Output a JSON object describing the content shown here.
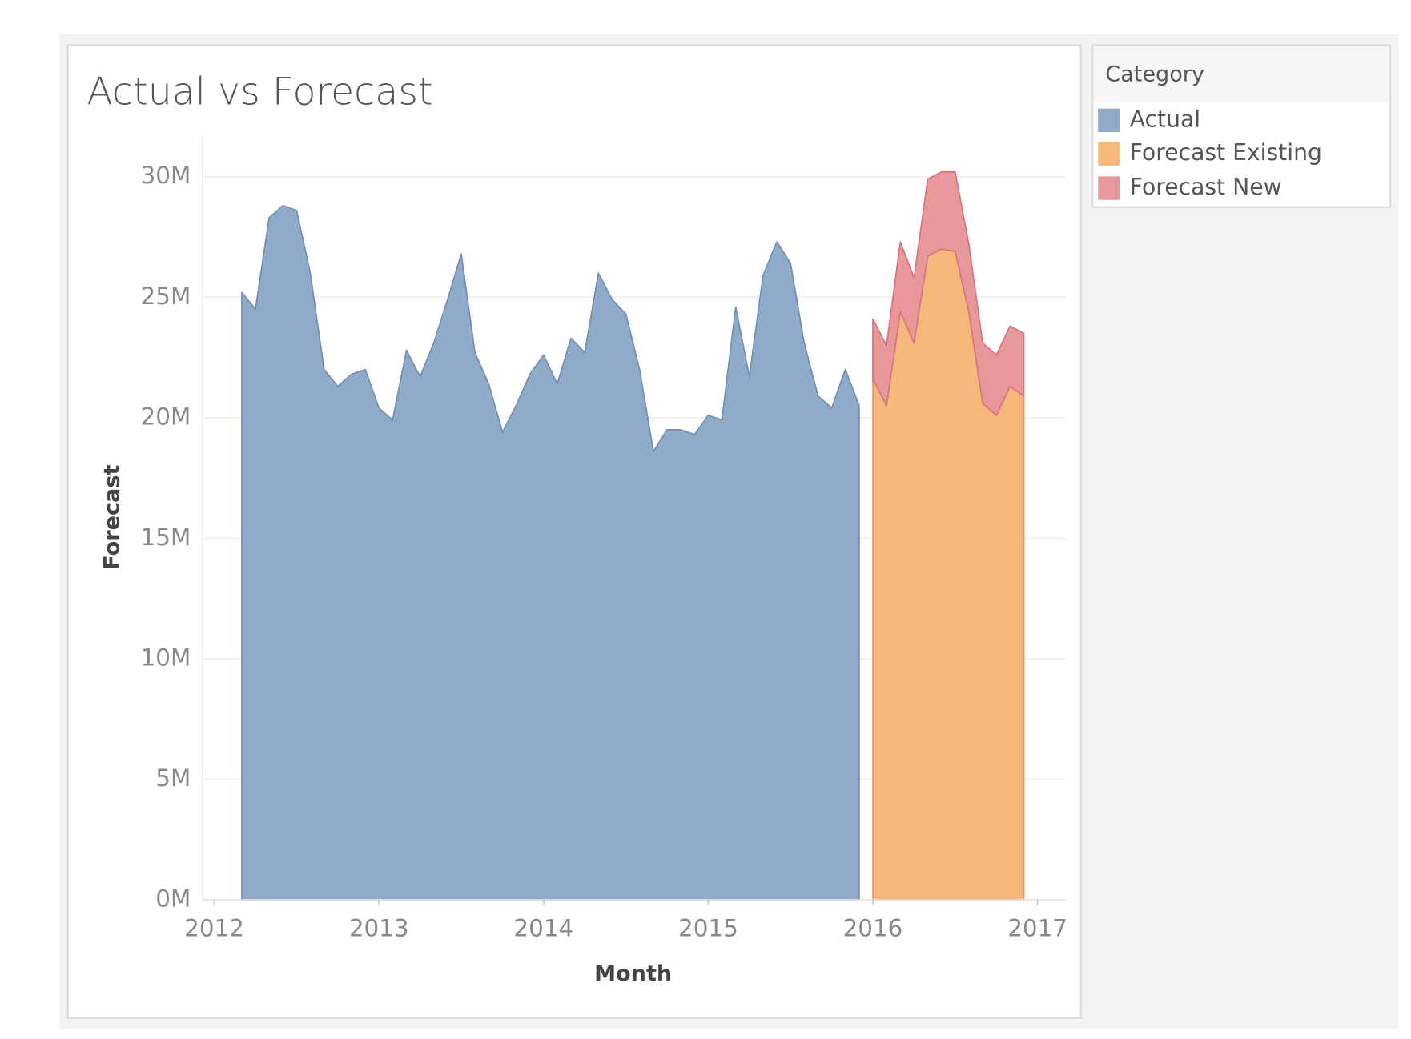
{
  "chart_data": {
    "type": "area",
    "title": "Actual vs Forecast",
    "x_label": "Month",
    "y_label": "Forecast",
    "legend_title": "Category",
    "legend": "right",
    "grid": true,
    "stacked": true,
    "xlim": [
      2011.929,
      2017.17
    ],
    "xticks": [
      2012,
      2013,
      2014,
      2015,
      2016,
      2017
    ],
    "ylim": [
      0,
      31700000
    ],
    "yticks": [
      {
        "value": 0,
        "label": "0M"
      },
      {
        "value": 5000000,
        "label": "5M"
      },
      {
        "value": 10000000,
        "label": "10M"
      },
      {
        "value": 15000000,
        "label": "15M"
      },
      {
        "value": 20000000,
        "label": "20M"
      },
      {
        "value": 25000000,
        "label": "25M"
      },
      {
        "value": 30000000,
        "label": "30M"
      }
    ],
    "x": [
      2012.167,
      2012.25,
      2012.333,
      2012.417,
      2012.5,
      2012.583,
      2012.667,
      2012.75,
      2012.833,
      2012.917,
      2013,
      2013.083,
      2013.167,
      2013.25,
      2013.333,
      2013.417,
      2013.5,
      2013.583,
      2013.667,
      2013.75,
      2013.833,
      2013.917,
      2014,
      2014.083,
      2014.167,
      2014.25,
      2014.333,
      2014.417,
      2014.5,
      2014.583,
      2014.667,
      2014.75,
      2014.833,
      2014.917,
      2015,
      2015.083,
      2015.167,
      2015.25,
      2015.333,
      2015.417,
      2015.5,
      2015.583,
      2015.667,
      2015.75,
      2015.833,
      2015.917,
      2016,
      2016.083,
      2016.167,
      2016.25,
      2016.333,
      2016.417,
      2016.5,
      2016.583,
      2016.667,
      2016.75,
      2016.833,
      2016.917
    ],
    "series": [
      {
        "name": "Actual",
        "color": "#8fabc9",
        "stroke": "#6f8fb8",
        "values": [
          25200000,
          24500000,
          28300000,
          28800000,
          28600000,
          26000000,
          22000000,
          21300000,
          21800000,
          22000000,
          20400000,
          19900000,
          22800000,
          21700000,
          23100000,
          24900000,
          26800000,
          22700000,
          21400000,
          19400000,
          20500000,
          21800000,
          22600000,
          21400000,
          23300000,
          22700000,
          26000000,
          24900000,
          24300000,
          22000000,
          18600000,
          19500000,
          19500000,
          19300000,
          20100000,
          19900000,
          24600000,
          21700000,
          25900000,
          27300000,
          26400000,
          23100000,
          20900000,
          20400000,
          22000000,
          20500000,
          null,
          null,
          null,
          null,
          null,
          null,
          null,
          null,
          null,
          null,
          null,
          null
        ]
      },
      {
        "name": "Forecast Existing",
        "color": "#f5b87a",
        "stroke": "#ee8f77",
        "values": [
          null,
          null,
          null,
          null,
          null,
          null,
          null,
          null,
          null,
          null,
          null,
          null,
          null,
          null,
          null,
          null,
          null,
          null,
          null,
          null,
          null,
          null,
          null,
          null,
          null,
          null,
          null,
          null,
          null,
          null,
          null,
          null,
          null,
          null,
          null,
          null,
          null,
          null,
          null,
          null,
          null,
          null,
          null,
          null,
          null,
          null,
          21600000,
          20500000,
          24400000,
          23100000,
          26700000,
          27000000,
          26900000,
          24400000,
          20600000,
          20100000,
          21300000,
          20900000
        ]
      },
      {
        "name": "Forecast New",
        "color": "#e8979a",
        "stroke": "#d9737c",
        "values": [
          null,
          null,
          null,
          null,
          null,
          null,
          null,
          null,
          null,
          null,
          null,
          null,
          null,
          null,
          null,
          null,
          null,
          null,
          null,
          null,
          null,
          null,
          null,
          null,
          null,
          null,
          null,
          null,
          null,
          null,
          null,
          null,
          null,
          null,
          null,
          null,
          null,
          null,
          null,
          null,
          null,
          null,
          null,
          null,
          null,
          null,
          2500000,
          2500000,
          2900000,
          2700000,
          3200000,
          3200000,
          3300000,
          2800000,
          2500000,
          2500000,
          2500000,
          2600000
        ]
      }
    ]
  }
}
